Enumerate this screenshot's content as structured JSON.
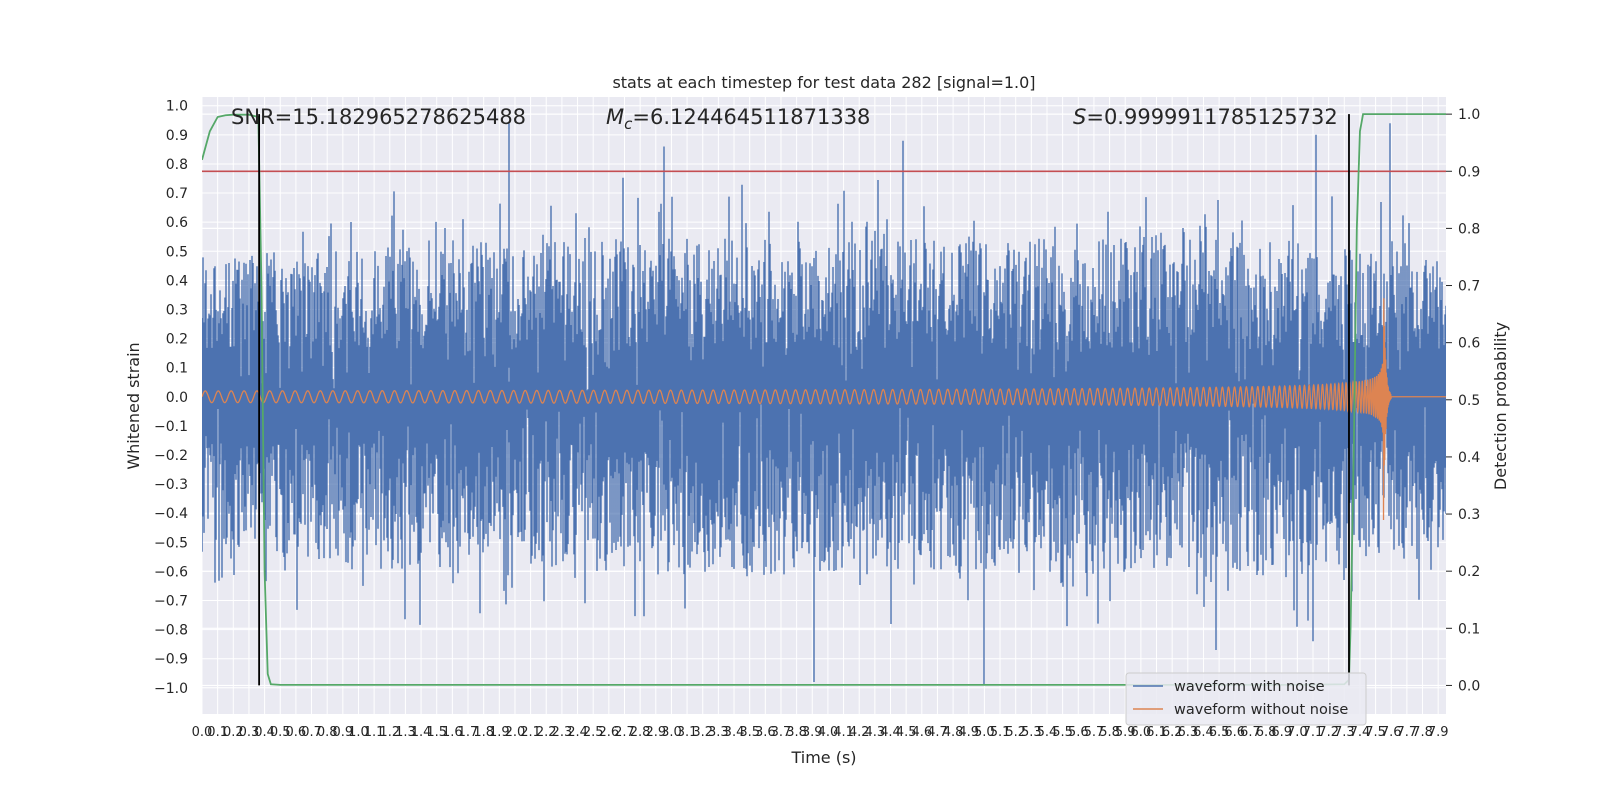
{
  "chart_data": {
    "type": "line",
    "title": "stats at each timestep for test data 282 [signal=1.0]",
    "xlabel": "Time (s)",
    "ylabel": "Whitened strain",
    "ylabel_right": "Detection probability",
    "xlim": [
      0,
      7.95
    ],
    "ylim": [
      -1.09,
      1.03
    ],
    "ylim_right": [
      -0.05,
      1.03
    ],
    "x_ticks": [
      0.0,
      0.1,
      0.2,
      0.3,
      0.4,
      0.5,
      0.6,
      0.7,
      0.8,
      0.9,
      1.0,
      1.1,
      1.2,
      1.3,
      1.4,
      1.5,
      1.6,
      1.7,
      1.8,
      1.9,
      2.0,
      2.1,
      2.2,
      2.3,
      2.4,
      2.5,
      2.6,
      2.7,
      2.8,
      2.9,
      3.0,
      3.1,
      3.2,
      3.3,
      3.4,
      3.5,
      3.6,
      3.7,
      3.8,
      3.9,
      4.0,
      4.1,
      4.2,
      4.3,
      4.4,
      4.5,
      4.6,
      4.7,
      4.8,
      4.9,
      5.0,
      5.1,
      5.2,
      5.3,
      5.4,
      5.5,
      5.6,
      5.7,
      5.8,
      5.9,
      6.0,
      6.1,
      6.2,
      6.3,
      6.4,
      6.5,
      6.6,
      6.7,
      6.8,
      6.9,
      7.0,
      7.1,
      7.2,
      7.3,
      7.4,
      7.5,
      7.6,
      7.7,
      7.8,
      7.9
    ],
    "y_ticks": [
      -1.0,
      -0.9,
      -0.8,
      -0.7,
      -0.6,
      -0.5,
      -0.4,
      -0.3,
      -0.2,
      -0.1,
      0.0,
      0.1,
      0.2,
      0.3,
      0.4,
      0.5,
      0.6,
      0.7,
      0.8,
      0.9,
      1.0
    ],
    "y_ticks_right": [
      0.0,
      0.1,
      0.2,
      0.3,
      0.4,
      0.5,
      0.6,
      0.7,
      0.8,
      0.9,
      1.0
    ],
    "grid": true,
    "legend_placement": "lower-right",
    "annotations": {
      "snr": "SNR=15.182965278625488",
      "mc_symbol": "M",
      "mc_sub": "c",
      "mc_value": "=6.124464511871338",
      "s_symbol": "S",
      "s_value": "=0.9999911785125732"
    },
    "series": [
      {
        "name": "waveform with noise",
        "color": "#4c72b0",
        "axis": "left",
        "envelope_x": [
          0.0,
          0.5,
          1.0,
          1.5,
          2.0,
          2.5,
          3.0,
          3.5,
          4.0,
          4.5,
          5.0,
          5.5,
          6.0,
          6.5,
          7.0,
          7.5,
          7.95
        ],
        "envelope_upper": [
          0.48,
          0.5,
          0.5,
          0.55,
          0.52,
          0.55,
          0.55,
          0.56,
          0.52,
          0.56,
          0.53,
          0.55,
          0.55,
          0.54,
          0.55,
          0.5,
          0.46
        ],
        "envelope_lower": [
          -0.48,
          -0.58,
          -0.6,
          -0.62,
          -0.58,
          -0.6,
          -0.6,
          -0.62,
          -0.6,
          -0.6,
          -0.62,
          -0.62,
          -0.6,
          -0.62,
          -0.62,
          -0.55,
          -0.5
        ],
        "spikes": [
          {
            "x": 1.96,
            "y": 0.94
          },
          {
            "x": 2.95,
            "y": 0.86
          },
          {
            "x": 4.48,
            "y": 0.88
          },
          {
            "x": 7.12,
            "y": 0.9
          },
          {
            "x": 7.59,
            "y": 0.94
          },
          {
            "x": 3.91,
            "y": -0.98
          },
          {
            "x": 5.0,
            "y": -0.99
          },
          {
            "x": 6.48,
            "y": -0.87
          },
          {
            "x": 7.1,
            "y": -0.84
          }
        ]
      },
      {
        "name": "waveform without noise",
        "color": "#dd8452",
        "axis": "left",
        "merger_time": 7.55,
        "amplitude_start": 0.02,
        "amplitude_peak": 0.45,
        "frequency_start_hz": 12,
        "note_ringdown_end": 7.6
      },
      {
        "name": "",
        "color": "#55a868",
        "axis": "right",
        "x": [
          0.0,
          0.05,
          0.1,
          0.15,
          0.2,
          0.3,
          0.36,
          0.38,
          0.4,
          0.42,
          0.44,
          0.5,
          1.0,
          2.0,
          3.0,
          4.0,
          5.0,
          6.0,
          7.0,
          7.3,
          7.33,
          7.34,
          7.36,
          7.38,
          7.4,
          7.42,
          7.5,
          7.95
        ],
        "y": [
          0.92,
          0.97,
          0.995,
          0.998,
          0.999,
          0.999,
          0.995,
          0.7,
          0.2,
          0.02,
          0.002,
          0.001,
          0.001,
          0.001,
          0.001,
          0.001,
          0.001,
          0.001,
          0.001,
          0.002,
          0.01,
          0.1,
          0.4,
          0.8,
          0.97,
          1.0,
          1.0,
          1.0
        ]
      }
    ],
    "threshold_line": {
      "color": "#c44e52",
      "axis": "right",
      "y": 0.9
    },
    "vertical_markers": [
      {
        "color": "#000000",
        "x": 0.365
      },
      {
        "color": "#000000",
        "x": 7.33
      }
    ]
  }
}
